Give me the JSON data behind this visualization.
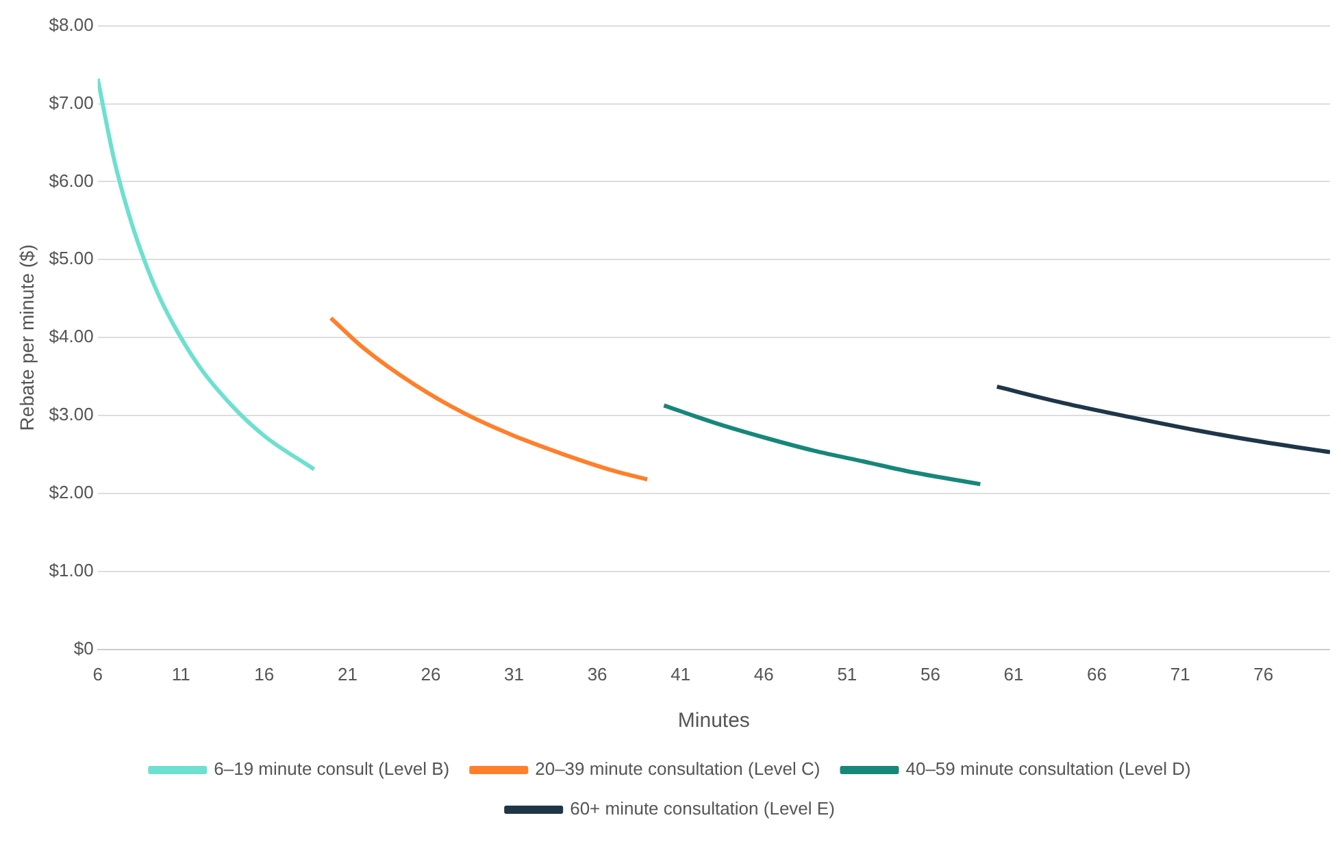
{
  "chart_data": {
    "type": "line",
    "xlabel": "Minutes",
    "ylabel": "Rebate per minute ($)",
    "xlim": [
      6,
      80
    ],
    "xticks": [
      6,
      11,
      16,
      21,
      26,
      31,
      36,
      41,
      46,
      51,
      56,
      61,
      66,
      71,
      76
    ],
    "ylim": [
      0,
      8
    ],
    "yticks": [
      {
        "value": 0,
        "label": "$0"
      },
      {
        "value": 1,
        "label": "$1.00"
      },
      {
        "value": 2,
        "label": "$2.00"
      },
      {
        "value": 3,
        "label": "$3.00"
      },
      {
        "value": 4,
        "label": "$4.00"
      },
      {
        "value": 5,
        "label": "$5.00"
      },
      {
        "value": 6,
        "label": "$6.00"
      },
      {
        "value": 7,
        "label": "$7.00"
      },
      {
        "value": 8,
        "label": "$8.00"
      }
    ],
    "grid": "y",
    "legend": "bottom",
    "marker": "none",
    "line_style": "solid",
    "series": [
      {
        "name": "6–19 minute consult (Level B)",
        "color": "#6ee0d0",
        "x": [
          6,
          7,
          8,
          9,
          10,
          12,
          14,
          16,
          19
        ],
        "values": [
          7.32,
          6.27,
          5.49,
          4.88,
          4.39,
          3.66,
          3.14,
          2.74,
          2.31
        ]
      },
      {
        "name": "20–39 minute consultation (Level C)",
        "color": "#ff7f2a",
        "x": [
          20,
          22,
          25,
          28,
          31,
          34,
          37,
          39
        ],
        "values": [
          4.25,
          3.86,
          3.4,
          3.03,
          2.74,
          2.5,
          2.29,
          2.18
        ]
      },
      {
        "name": "40–59 minute consultation (Level D)",
        "color": "#17877a",
        "x": [
          40,
          43,
          46,
          49,
          52,
          55,
          59
        ],
        "values": [
          3.13,
          2.91,
          2.72,
          2.55,
          2.41,
          2.27,
          2.12
        ]
      },
      {
        "name": "60+ minute consultation (Level E)",
        "color": "#1e3648",
        "x": [
          60,
          64,
          68,
          72,
          76,
          80
        ],
        "values": [
          3.37,
          3.16,
          2.98,
          2.81,
          2.66,
          2.53
        ]
      }
    ]
  }
}
